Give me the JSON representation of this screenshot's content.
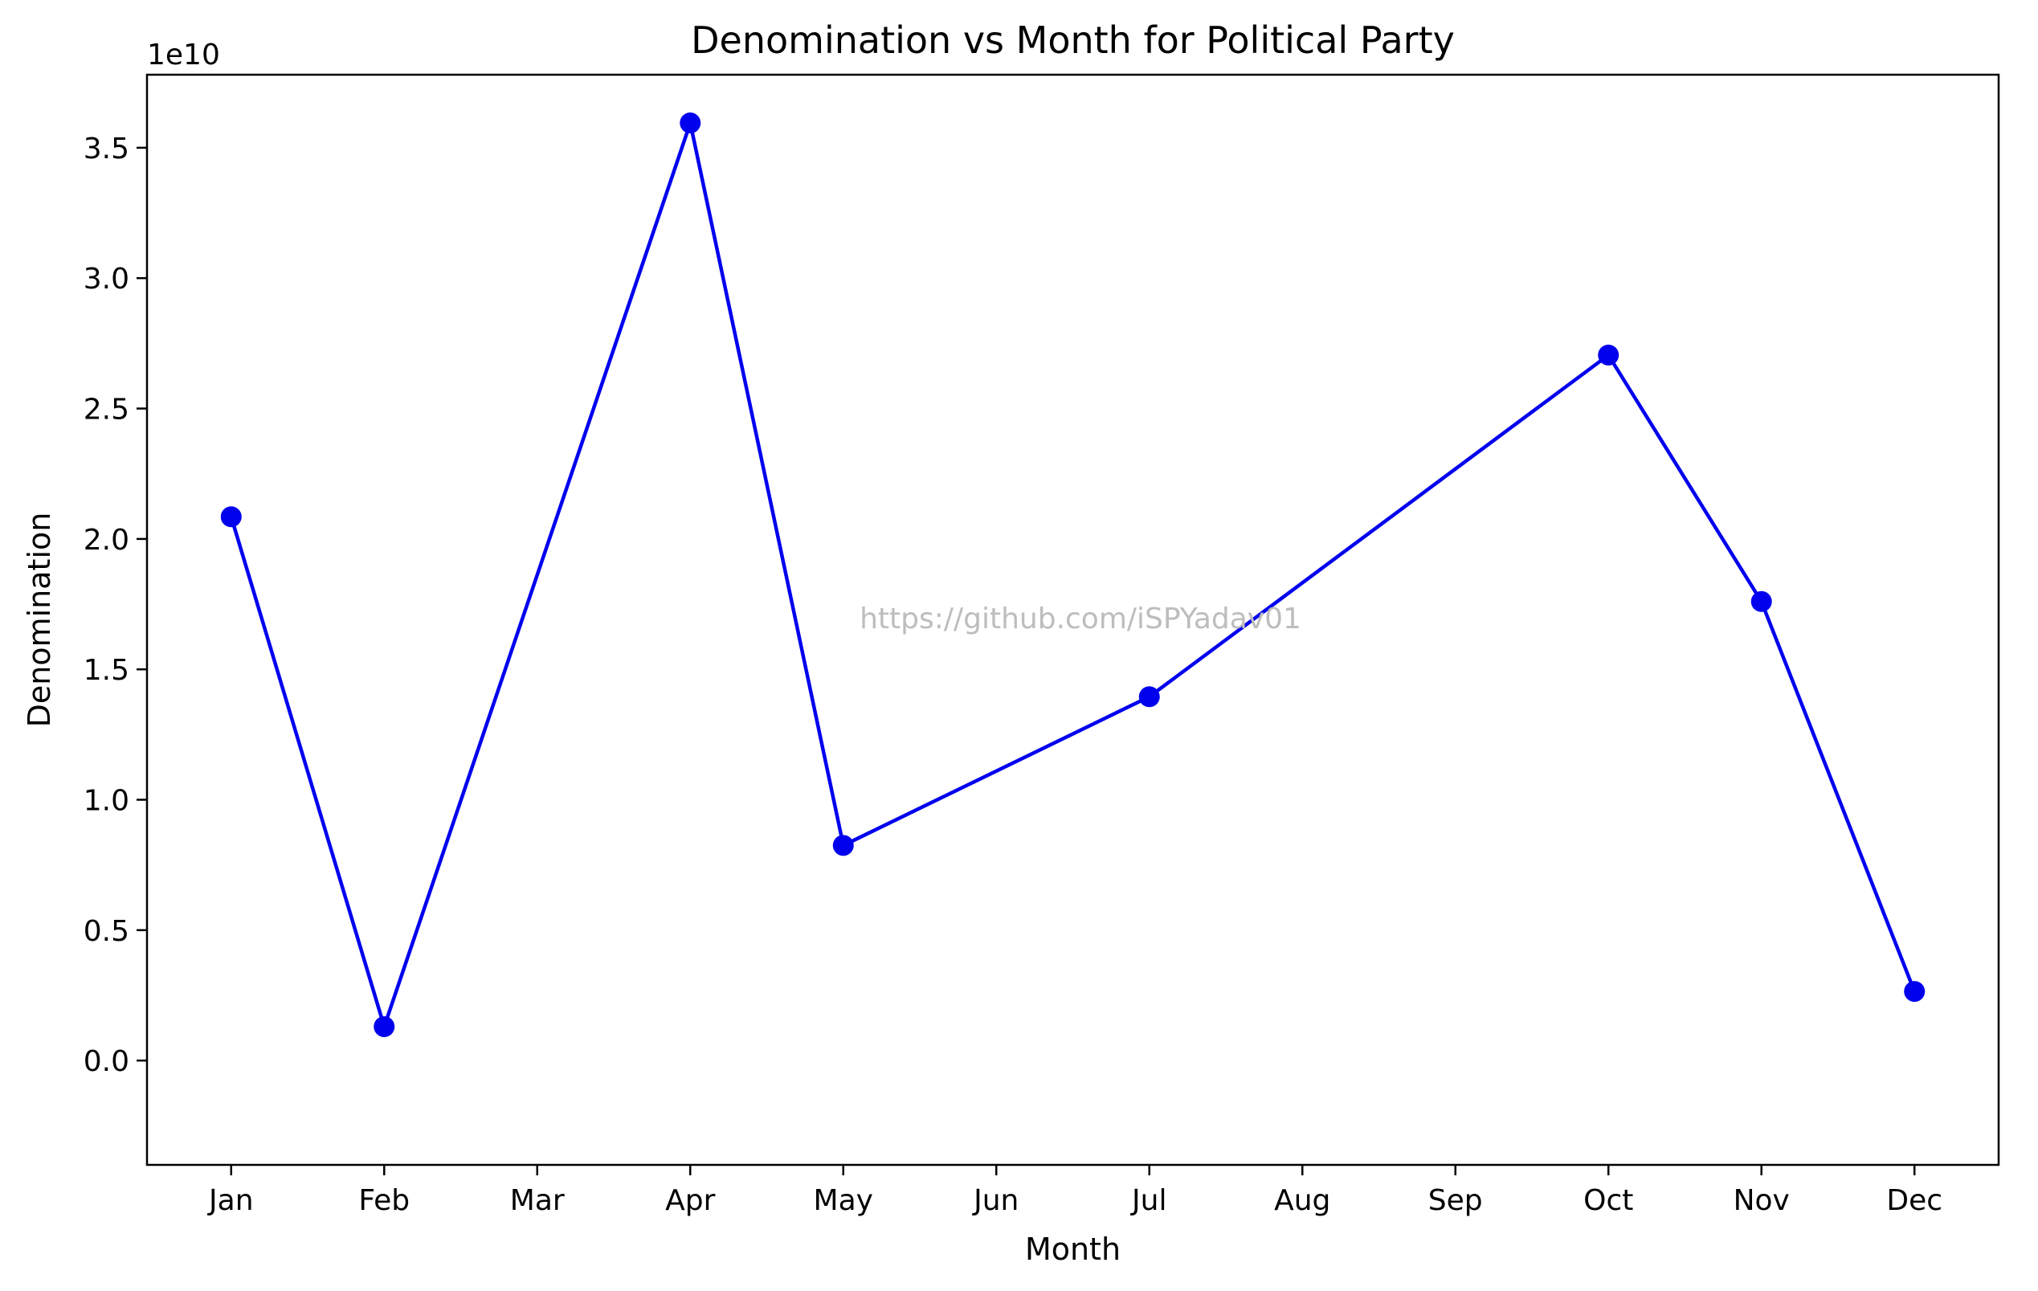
{
  "chart_data": {
    "type": "line",
    "title": "Denomination vs Month for Political Party",
    "xlabel": "Month",
    "ylabel": "Denomination",
    "y_offset_label": "1e10",
    "y_scale": 10000000000,
    "categories": [
      "Jan",
      "Feb",
      "Mar",
      "Apr",
      "May",
      "Jun",
      "Jul",
      "Aug",
      "Sep",
      "Oct",
      "Nov",
      "Dec"
    ],
    "series": [
      {
        "x": [
          "Jan",
          "Feb",
          "Apr",
          "May",
          "Jul",
          "Oct",
          "Nov",
          "Dec"
        ],
        "values": [
          20850000000,
          1300000000,
          35950000000,
          8250000000,
          13950000000,
          27050000000,
          17600000000,
          2650000000
        ],
        "color": "#0000ee",
        "marker": "circle"
      }
    ],
    "ylim": [
      -0.4,
      3.78
    ],
    "yticks": [
      0.0,
      0.5,
      1.0,
      1.5,
      2.0,
      2.5,
      3.0,
      3.5
    ],
    "ytick_labels": [
      "0.0",
      "0.5",
      "1.0",
      "1.5",
      "2.0",
      "2.5",
      "3.0",
      "3.5"
    ],
    "grid": false,
    "legend": "none"
  },
  "watermark": "https://github.com/iSPYadav01"
}
